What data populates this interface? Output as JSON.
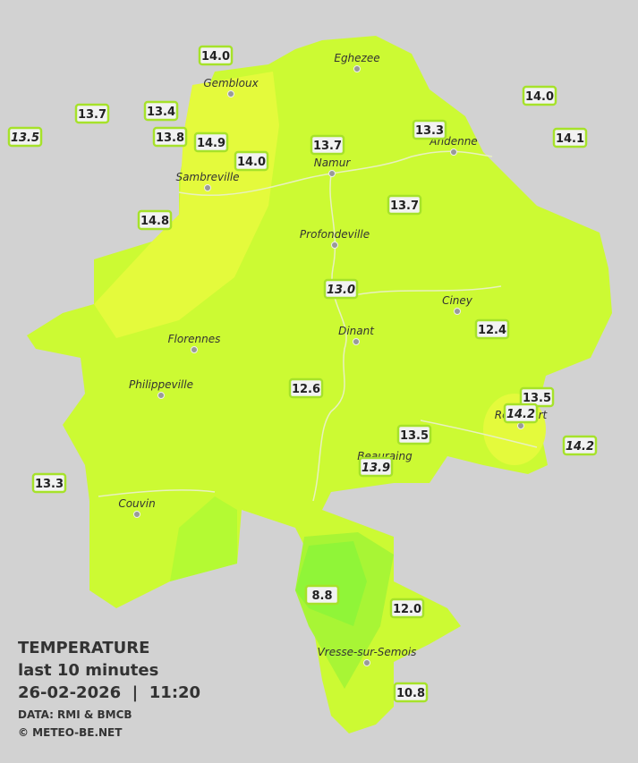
{
  "towns": [
    "Eghezee",
    "Gembloux",
    "Andenne",
    "Namur",
    "Sambreville",
    "Profondeville",
    "Ciney",
    "Dinant",
    "Florennes",
    "Philippeville",
    "Beauraing",
    "Rochefort",
    "Couvin",
    "Vresse-sur-Semois"
  ],
  "stations": [
    "14.0",
    "13.7",
    "13.4",
    "13.5",
    "13.8",
    "14.9",
    "14.0",
    "13.7",
    "13.3",
    "14.0",
    "14.1",
    "14.8",
    "13.7",
    "13.0",
    "12.4",
    "12.6",
    "13.5",
    "14.2",
    "14.2",
    "13.5",
    "13.9",
    "13.3",
    "8.8",
    "12.0",
    "10.8"
  ],
  "legend": {
    "title": "TEMPERATURE",
    "period": "last 10 minutes",
    "datetime": "26-02-2026  |  11:20",
    "source": "DATA: RMI & BMCB",
    "credit": "© METEO-BE.NET"
  }
}
